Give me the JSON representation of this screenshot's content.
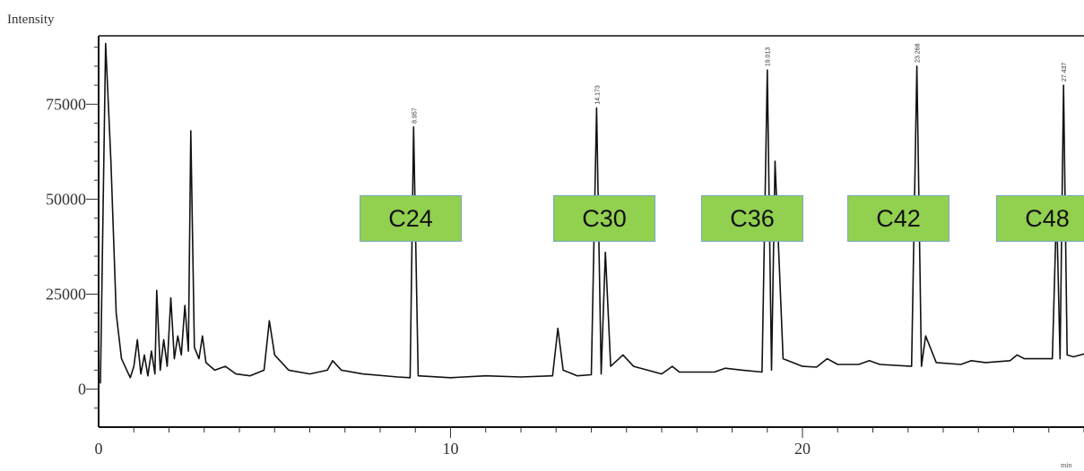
{
  "chart_data": {
    "type": "line",
    "title": "",
    "ylabel": "Intensity",
    "xlabel": "min",
    "xlim": [
      0,
      28
    ],
    "ylim": [
      -10000,
      93000
    ],
    "x_ticks": [
      0,
      10,
      20
    ],
    "y_ticks": [
      0,
      25000,
      50000,
      75000
    ],
    "y_tick_labels": [
      "0",
      "25000",
      "50000",
      "75000"
    ],
    "grid": false,
    "series": [
      {
        "color": "#111111",
        "points": [
          [
            0.05,
            1500
          ],
          [
            0.2,
            91000
          ],
          [
            0.35,
            60000
          ],
          [
            0.5,
            20000
          ],
          [
            0.65,
            8000
          ],
          [
            0.8,
            5000
          ],
          [
            0.9,
            3000
          ],
          [
            1.0,
            6000
          ],
          [
            1.1,
            13000
          ],
          [
            1.2,
            4000
          ],
          [
            1.3,
            9000
          ],
          [
            1.4,
            3500
          ],
          [
            1.5,
            10000
          ],
          [
            1.6,
            4000
          ],
          [
            1.65,
            26000
          ],
          [
            1.75,
            5000
          ],
          [
            1.85,
            13000
          ],
          [
            1.95,
            6000
          ],
          [
            2.05,
            24000
          ],
          [
            2.15,
            8000
          ],
          [
            2.25,
            14000
          ],
          [
            2.35,
            9000
          ],
          [
            2.45,
            22000
          ],
          [
            2.55,
            10000
          ],
          [
            2.62,
            68000
          ],
          [
            2.72,
            11000
          ],
          [
            2.85,
            8000
          ],
          [
            2.95,
            14000
          ],
          [
            3.05,
            7000
          ],
          [
            3.3,
            5000
          ],
          [
            3.6,
            6000
          ],
          [
            3.9,
            4000
          ],
          [
            4.3,
            3500
          ],
          [
            4.7,
            5000
          ],
          [
            4.85,
            18000
          ],
          [
            5.0,
            9000
          ],
          [
            5.4,
            5000
          ],
          [
            6.0,
            4000
          ],
          [
            6.5,
            5000
          ],
          [
            6.65,
            7500
          ],
          [
            6.9,
            5000
          ],
          [
            7.5,
            4000
          ],
          [
            8.5,
            3200
          ],
          [
            8.85,
            3000
          ],
          [
            8.95,
            69000
          ],
          [
            9.08,
            3500
          ],
          [
            10.0,
            3000
          ],
          [
            11.0,
            3500
          ],
          [
            12.0,
            3200
          ],
          [
            12.9,
            3500
          ],
          [
            13.05,
            16000
          ],
          [
            13.2,
            5000
          ],
          [
            13.6,
            3500
          ],
          [
            14.0,
            3800
          ],
          [
            14.15,
            74000
          ],
          [
            14.28,
            4000
          ],
          [
            14.4,
            36000
          ],
          [
            14.55,
            6000
          ],
          [
            14.9,
            9000
          ],
          [
            15.2,
            6000
          ],
          [
            16.0,
            4000
          ],
          [
            16.3,
            6000
          ],
          [
            16.5,
            4500
          ],
          [
            17.5,
            4500
          ],
          [
            17.8,
            5500
          ],
          [
            18.3,
            5000
          ],
          [
            18.85,
            4500
          ],
          [
            19.0,
            84000
          ],
          [
            19.12,
            5000
          ],
          [
            19.22,
            60000
          ],
          [
            19.45,
            8000
          ],
          [
            20.0,
            6000
          ],
          [
            20.4,
            5800
          ],
          [
            20.7,
            8000
          ],
          [
            21.0,
            6500
          ],
          [
            21.6,
            6500
          ],
          [
            21.9,
            7500
          ],
          [
            22.2,
            6500
          ],
          [
            23.1,
            6000
          ],
          [
            23.25,
            85000
          ],
          [
            23.38,
            6000
          ],
          [
            23.5,
            14000
          ],
          [
            23.8,
            7000
          ],
          [
            24.5,
            6500
          ],
          [
            24.8,
            7500
          ],
          [
            25.2,
            7000
          ],
          [
            25.9,
            7500
          ],
          [
            26.1,
            9000
          ],
          [
            26.3,
            8000
          ],
          [
            27.1,
            8000
          ],
          [
            27.22,
            48000
          ],
          [
            27.32,
            8000
          ],
          [
            27.42,
            80000
          ],
          [
            27.52,
            9000
          ],
          [
            27.7,
            8500
          ],
          [
            28.1,
            9500
          ],
          [
            28.3,
            14000
          ],
          [
            28.45,
            11000
          ],
          [
            28.6,
            10000
          ]
        ]
      }
    ],
    "annotations": [
      {
        "label": "C24",
        "peak_x": 8.95,
        "peak_label": "8.957"
      },
      {
        "label": "C30",
        "peak_x": 14.15,
        "peak_label": "14.173"
      },
      {
        "label": "C36",
        "peak_x": 19.0,
        "peak_label": "19.013"
      },
      {
        "label": "C42",
        "peak_x": 23.25,
        "peak_label": "23.268"
      },
      {
        "label": "C48",
        "peak_x": 27.42,
        "peak_label": "27.437"
      }
    ]
  }
}
